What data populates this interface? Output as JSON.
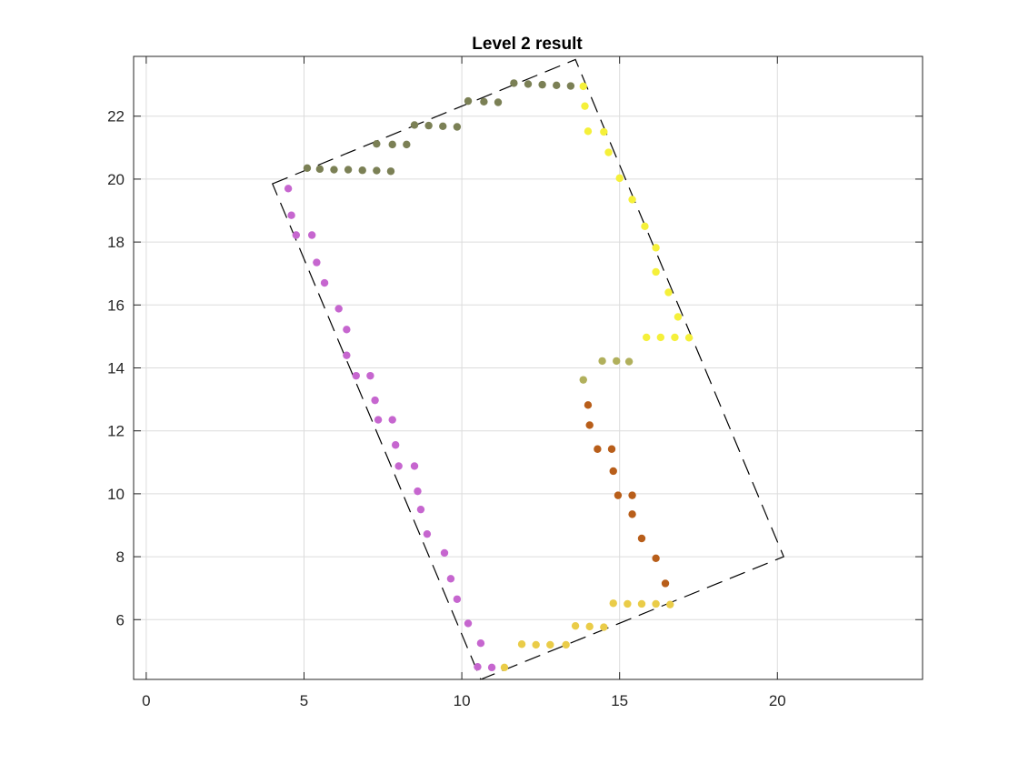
{
  "chart_data": {
    "type": "scatter",
    "title": "Level 2 result",
    "xlabel": "",
    "ylabel": "",
    "xlim": [
      -0.4,
      24.6
    ],
    "ylim": [
      4.1,
      23.9
    ],
    "x_ticks": [
      0,
      5,
      10,
      15,
      20
    ],
    "y_ticks": [
      6,
      8,
      10,
      12,
      14,
      16,
      18,
      20,
      22
    ],
    "grid": true,
    "boundary": {
      "style": "dashed",
      "color": "#000000",
      "vertices": [
        [
          4.0,
          19.85
        ],
        [
          13.6,
          23.8
        ],
        [
          20.2,
          8.0
        ],
        [
          10.6,
          4.1
        ]
      ]
    },
    "series": [
      {
        "color": "#7b8055",
        "points": [
          [
            5.1,
            20.35
          ],
          [
            5.5,
            20.32
          ],
          [
            5.95,
            20.3
          ],
          [
            6.4,
            20.3
          ],
          [
            6.85,
            20.28
          ],
          [
            7.3,
            20.27
          ],
          [
            7.75,
            20.25
          ],
          [
            7.3,
            21.12
          ],
          [
            7.8,
            21.1
          ],
          [
            8.25,
            21.1
          ],
          [
            8.5,
            21.72
          ],
          [
            8.95,
            21.7
          ],
          [
            9.4,
            21.68
          ],
          [
            9.85,
            21.66
          ],
          [
            10.2,
            22.48
          ],
          [
            10.7,
            22.46
          ],
          [
            11.15,
            22.44
          ],
          [
            11.65,
            23.05
          ],
          [
            12.1,
            23.02
          ],
          [
            12.55,
            23.0
          ],
          [
            13.0,
            22.98
          ],
          [
            13.45,
            22.96
          ]
        ]
      },
      {
        "color": "#f5f03a",
        "points": [
          [
            13.85,
            22.95
          ],
          [
            13.9,
            22.32
          ],
          [
            14.0,
            21.52
          ],
          [
            14.5,
            21.5
          ],
          [
            14.65,
            20.85
          ],
          [
            15.0,
            20.03
          ],
          [
            15.4,
            19.35
          ],
          [
            15.8,
            18.5
          ],
          [
            16.15,
            17.82
          ],
          [
            16.15,
            17.05
          ],
          [
            16.55,
            16.4
          ],
          [
            16.85,
            15.62
          ],
          [
            15.85,
            14.97
          ],
          [
            16.3,
            14.97
          ],
          [
            16.75,
            14.97
          ],
          [
            17.2,
            14.96
          ]
        ]
      },
      {
        "color": "#b1b05c",
        "points": [
          [
            14.45,
            14.22
          ],
          [
            14.9,
            14.22
          ],
          [
            15.3,
            14.2
          ],
          [
            13.85,
            13.62
          ]
        ]
      },
      {
        "color": "#b85e1a",
        "points": [
          [
            14.0,
            12.82
          ],
          [
            14.05,
            12.18
          ],
          [
            14.3,
            11.42
          ],
          [
            14.75,
            11.42
          ],
          [
            14.8,
            10.72
          ],
          [
            14.95,
            9.95
          ],
          [
            15.4,
            9.95
          ],
          [
            15.4,
            9.35
          ],
          [
            15.7,
            8.58
          ],
          [
            16.15,
            7.95
          ],
          [
            16.45,
            7.15
          ]
        ]
      },
      {
        "color": "#eacc48",
        "points": [
          [
            14.8,
            6.52
          ],
          [
            15.25,
            6.5
          ],
          [
            15.7,
            6.5
          ],
          [
            16.15,
            6.5
          ],
          [
            16.6,
            6.48
          ],
          [
            13.6,
            5.8
          ],
          [
            14.05,
            5.78
          ],
          [
            14.5,
            5.76
          ],
          [
            11.9,
            5.22
          ],
          [
            12.35,
            5.2
          ],
          [
            12.8,
            5.2
          ],
          [
            13.3,
            5.2
          ],
          [
            11.35,
            4.48
          ]
        ]
      },
      {
        "color": "#c666cf",
        "points": [
          [
            4.5,
            19.7
          ],
          [
            4.6,
            18.85
          ],
          [
            4.75,
            18.22
          ],
          [
            5.25,
            18.22
          ],
          [
            5.4,
            17.35
          ],
          [
            5.65,
            16.7
          ],
          [
            6.1,
            15.88
          ],
          [
            6.35,
            15.22
          ],
          [
            6.35,
            14.4
          ],
          [
            6.65,
            13.75
          ],
          [
            7.1,
            13.75
          ],
          [
            7.25,
            12.97
          ],
          [
            7.35,
            12.35
          ],
          [
            7.8,
            12.35
          ],
          [
            7.9,
            11.55
          ],
          [
            8.0,
            10.88
          ],
          [
            8.5,
            10.88
          ],
          [
            8.6,
            10.08
          ],
          [
            8.7,
            9.5
          ],
          [
            8.9,
            8.72
          ],
          [
            9.45,
            8.12
          ],
          [
            9.65,
            7.3
          ],
          [
            9.85,
            6.65
          ],
          [
            10.2,
            5.88
          ],
          [
            10.6,
            5.25
          ],
          [
            10.5,
            4.5
          ],
          [
            10.95,
            4.48
          ]
        ]
      }
    ]
  }
}
